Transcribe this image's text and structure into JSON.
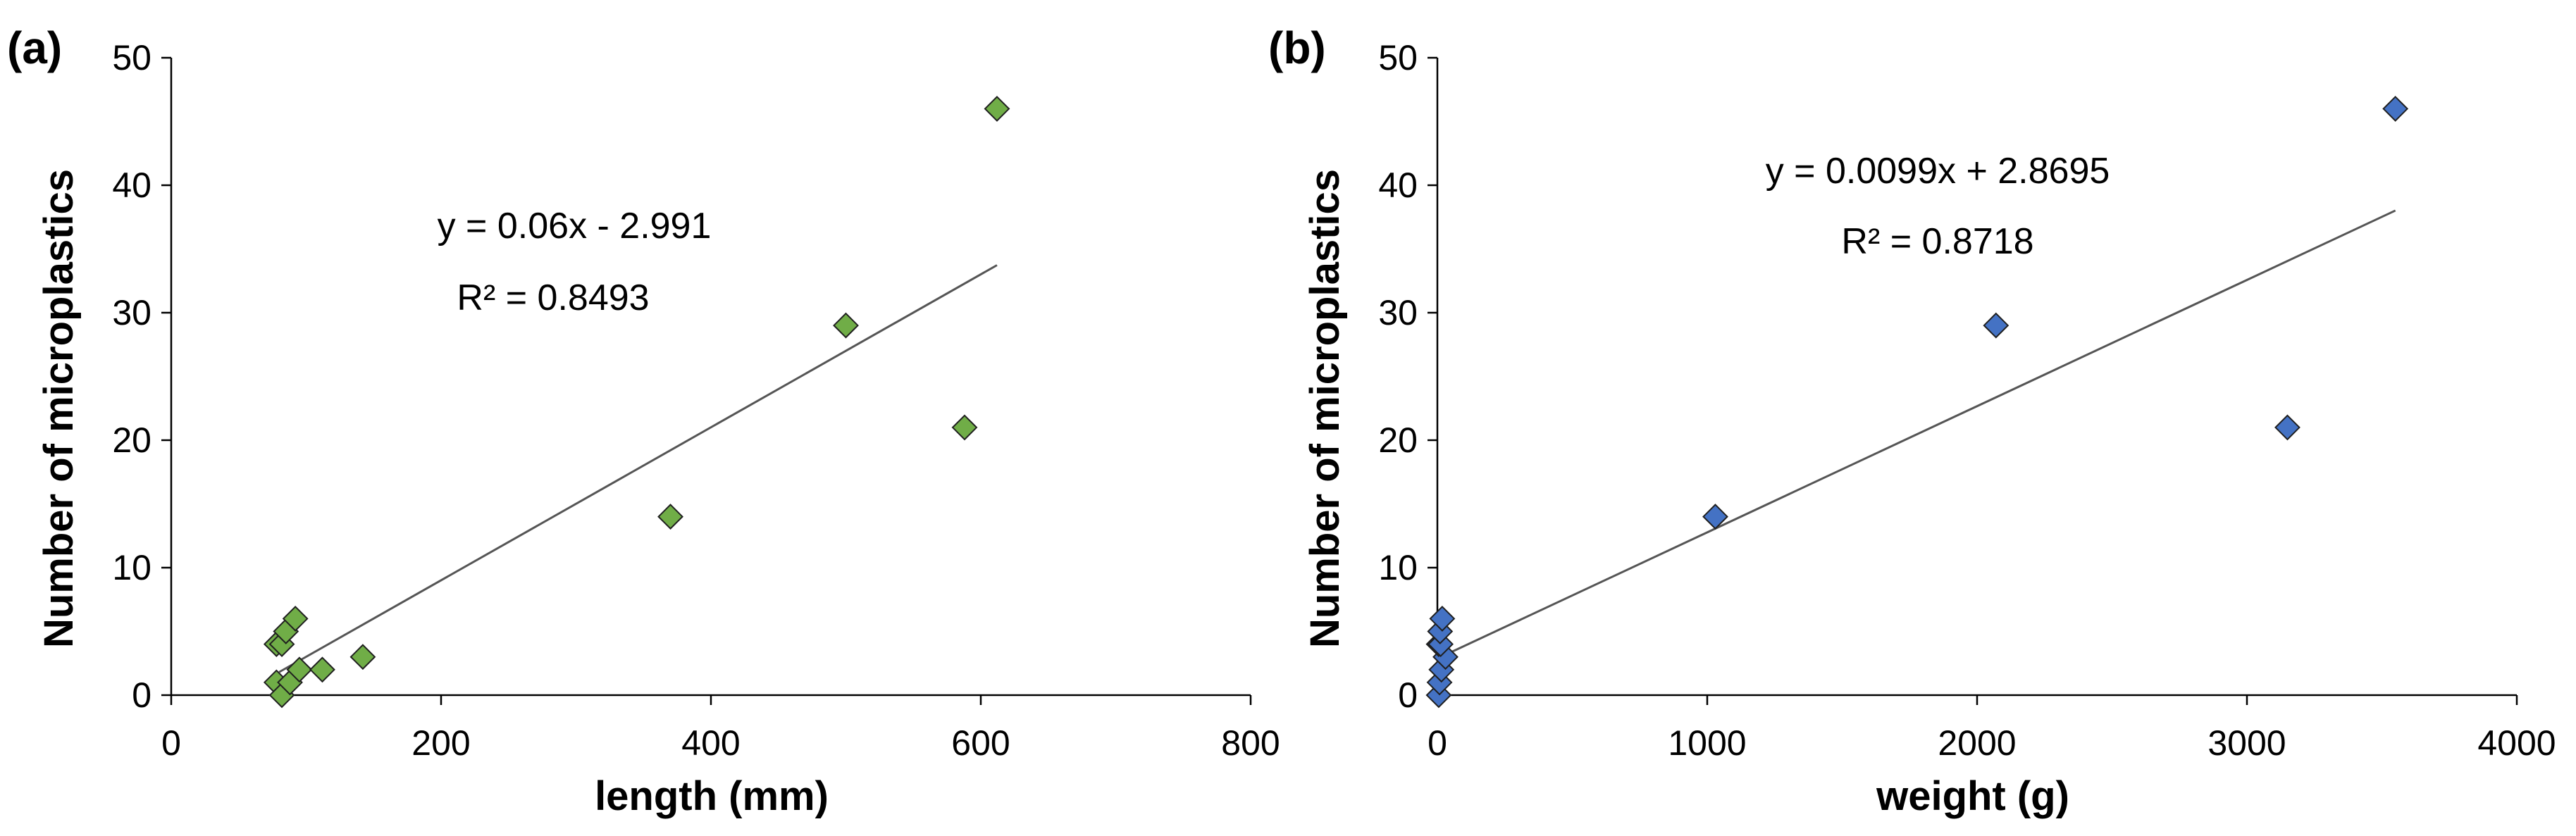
{
  "chart_data": [
    {
      "panel_label": "(a)",
      "type": "scatter",
      "xlabel": "length (mm)",
      "ylabel": "Number of microplastics",
      "xlim": [
        0,
        800
      ],
      "ylim": [
        0,
        50
      ],
      "xticks": [
        "0",
        "200",
        "400",
        "600",
        "800"
      ],
      "yticks": [
        "0",
        "10",
        "20",
        "30",
        "40",
        "50"
      ],
      "marker_color": "#70ad47",
      "points": [
        {
          "x": 78,
          "y": 1
        },
        {
          "x": 82,
          "y": 0
        },
        {
          "x": 88,
          "y": 1
        },
        {
          "x": 95,
          "y": 2
        },
        {
          "x": 112,
          "y": 2
        },
        {
          "x": 142,
          "y": 3
        },
        {
          "x": 78,
          "y": 4
        },
        {
          "x": 82,
          "y": 4
        },
        {
          "x": 85,
          "y": 5
        },
        {
          "x": 92,
          "y": 6
        },
        {
          "x": 370,
          "y": 14
        },
        {
          "x": 500,
          "y": 29
        },
        {
          "x": 588,
          "y": 21
        },
        {
          "x": 612,
          "y": 46
        }
      ],
      "trendline": {
        "slope": 0.06,
        "intercept": -2.991,
        "x_range": [
          80,
          612
        ]
      },
      "equation": "y = 0.06x - 2.991",
      "r2": "R² = 0.8493"
    },
    {
      "panel_label": "(b)",
      "type": "scatter",
      "xlabel": "weight (g)",
      "ylabel": "Number of microplastics",
      "xlim": [
        0,
        4000
      ],
      "ylim": [
        0,
        50
      ],
      "xticks": [
        "0",
        "1000",
        "2000",
        "3000",
        "4000"
      ],
      "yticks": [
        "0",
        "10",
        "20",
        "30",
        "40",
        "50"
      ],
      "marker_color": "#4472c4",
      "points": [
        {
          "x": 5,
          "y": 0
        },
        {
          "x": 8,
          "y": 1
        },
        {
          "x": 15,
          "y": 2
        },
        {
          "x": 30,
          "y": 3
        },
        {
          "x": 5,
          "y": 4
        },
        {
          "x": 12,
          "y": 4
        },
        {
          "x": 10,
          "y": 5
        },
        {
          "x": 18,
          "y": 6
        },
        {
          "x": 1030,
          "y": 14
        },
        {
          "x": 2070,
          "y": 29
        },
        {
          "x": 3150,
          "y": 21
        },
        {
          "x": 3550,
          "y": 46
        }
      ],
      "trendline": {
        "slope": 0.0099,
        "intercept": 2.8695,
        "x_range": [
          10,
          3550
        ]
      },
      "equation": "y = 0.0099x + 2.8695",
      "r2": "R² = 0.8718"
    }
  ]
}
